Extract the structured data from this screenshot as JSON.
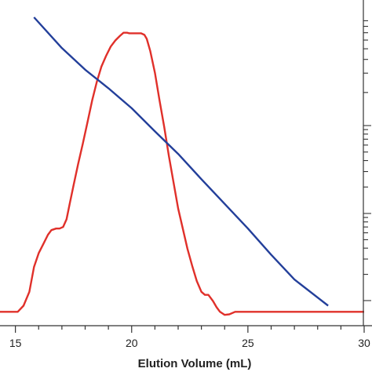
{
  "chart_data": {
    "type": "line",
    "title": "",
    "xlabel": "Elution Volume (mL)",
    "ylabel": "",
    "xlim": [
      14,
      30
    ],
    "ylim": [
      0,
      100
    ],
    "x_ticks": [
      15,
      20,
      25,
      30
    ],
    "x_tick_labels": [
      "15",
      "20",
      "25",
      "30"
    ],
    "grid": false,
    "legend": "none",
    "series": [
      {
        "color": "#e0302a",
        "x": [
          14.0,
          15.1,
          15.35,
          15.6,
          15.8,
          16.0,
          16.2,
          16.4,
          16.55,
          16.75,
          16.9,
          17.05,
          17.2,
          17.35,
          17.5,
          17.7,
          17.9,
          18.1,
          18.3,
          18.5,
          18.7,
          18.9,
          19.1,
          19.3,
          19.5,
          19.65,
          19.8,
          19.9,
          20.0,
          20.2,
          20.4,
          20.55,
          20.65,
          20.8,
          21.0,
          21.2,
          21.4,
          21.6,
          21.8,
          22.0,
          22.2,
          22.4,
          22.6,
          22.8,
          23.0,
          23.15,
          23.3,
          23.5,
          23.65,
          23.8,
          24.0,
          24.2,
          24.45,
          30.0
        ],
        "y": [
          4.5,
          4.5,
          6.5,
          11,
          19,
          23.5,
          26.5,
          29.5,
          31,
          31.5,
          31.5,
          32,
          34.5,
          40,
          45.5,
          52.5,
          59,
          66,
          73,
          79,
          84,
          87.5,
          90.5,
          92.5,
          94,
          95,
          95,
          94.8,
          94.8,
          94.8,
          94.8,
          94.3,
          93,
          89,
          82,
          73,
          64.5,
          55,
          46.5,
          38,
          31.5,
          25,
          19.5,
          14.5,
          11,
          10,
          10,
          8,
          6,
          4.5,
          3.5,
          3.7,
          4.5,
          4.5
        ]
      },
      {
        "color": "#233f9a",
        "x": [
          15.8,
          17.0,
          18.0,
          19.0,
          20.0,
          21.0,
          22.0,
          23.0,
          24.0,
          25.0,
          26.0,
          27.0,
          28.45
        ],
        "y": [
          100,
          90,
          83,
          77,
          70.5,
          63,
          55.7,
          47.5,
          39.5,
          31.5,
          23,
          15,
          6.5
        ]
      }
    ]
  }
}
